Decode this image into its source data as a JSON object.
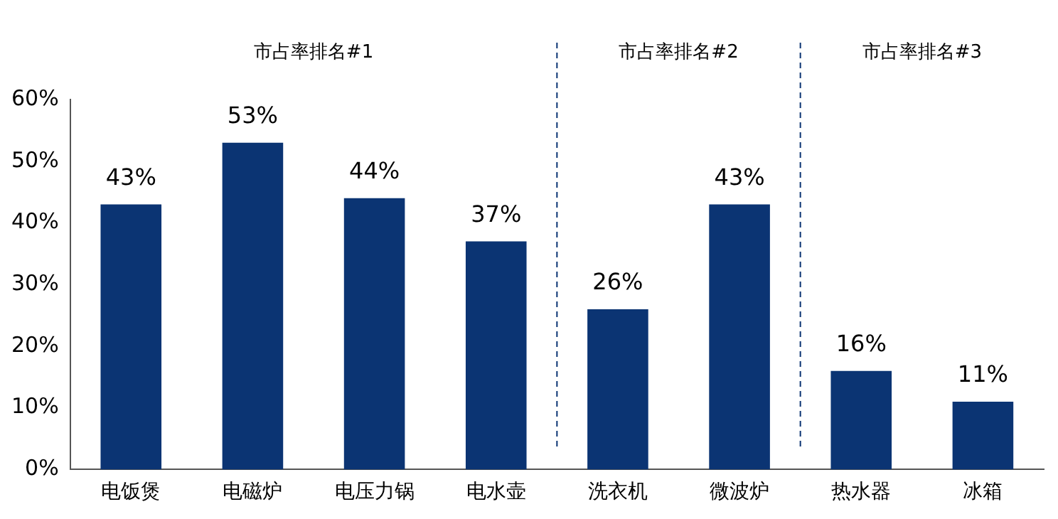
{
  "chart_data": {
    "type": "bar",
    "categories": [
      "电饭煲",
      "电磁炉",
      "电压力锅",
      "电水壶",
      "洗衣机",
      "微波炉",
      "热水器",
      "冰箱"
    ],
    "values": [
      43,
      53,
      44,
      37,
      26,
      43,
      16,
      11
    ],
    "value_labels": [
      "43%",
      "53%",
      "44%",
      "37%",
      "26%",
      "43%",
      "16%",
      "11%"
    ],
    "color": "#0b3473",
    "ylim": [
      0,
      60
    ],
    "yticks": [
      {
        "value": 0,
        "label": "0%"
      },
      {
        "value": 10,
        "label": "10%"
      },
      {
        "value": 20,
        "label": "20%"
      },
      {
        "value": 30,
        "label": "30%"
      },
      {
        "value": 40,
        "label": "40%"
      },
      {
        "value": 50,
        "label": "50%"
      },
      {
        "value": 60,
        "label": "60%"
      }
    ],
    "grid": false,
    "legend": false,
    "annotations": [
      "市占率排名#1",
      "市占率排名#2",
      "市占率排名#3"
    ]
  }
}
